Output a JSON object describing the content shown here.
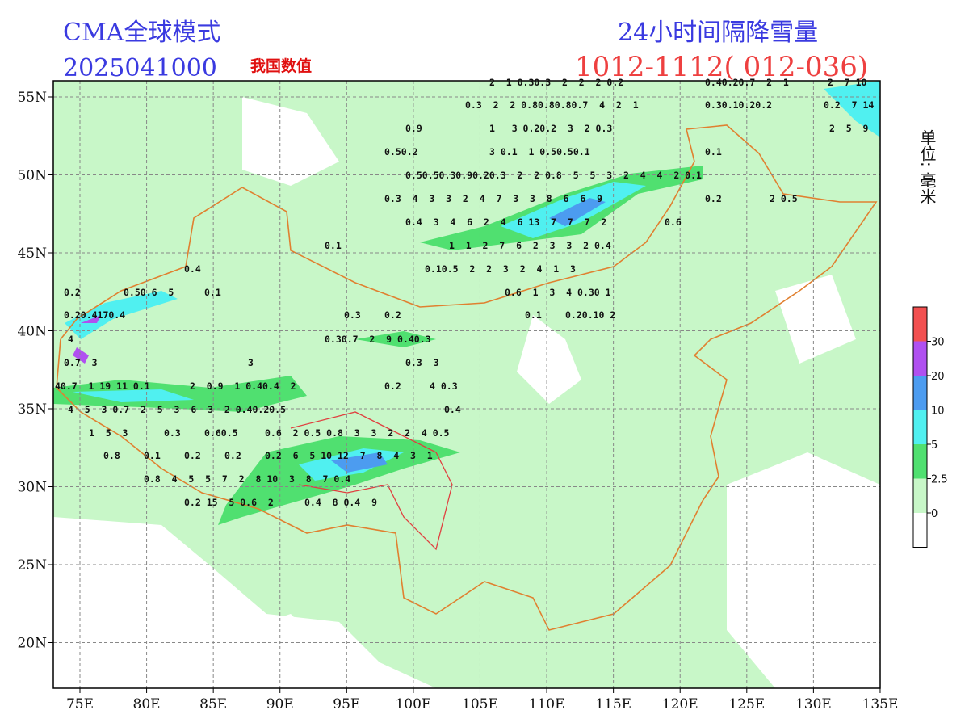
{
  "header": {
    "model": "CMA全球模式",
    "run": "2025041000",
    "badge": "我国数值",
    "product": "24小时间隔降雪量",
    "period": "1012-1112( 012-036)"
  },
  "unit_label": "单位: 毫米",
  "map": {
    "lat_labels": [
      "55N",
      "50N",
      "45N",
      "40N",
      "35N",
      "30N",
      "25N",
      "20N"
    ],
    "lon_labels": [
      "75E",
      "80E",
      "85E",
      "90E",
      "95E",
      "100E",
      "105E",
      "110E",
      "115E",
      "120E",
      "125E",
      "130E",
      "135E"
    ]
  },
  "legend": {
    "labels": [
      "30",
      "20",
      "10",
      "5",
      "2.5",
      "0"
    ],
    "colors": [
      "#f25050",
      "#b050f0",
      "#4c9cf0",
      "#50f0f0",
      "#50e070",
      "#c8f7c8",
      "#ffffff"
    ]
  },
  "station_values": [
    [
      "2  1 0.30.3  2  2  2 0.2",
      "0.40.20.7  2  1",
      "2  7 10"
    ],
    [
      "0.3  2  2 0.80.80.80.7  4  2  1",
      "0.30.10.20.2",
      "0.2  7 14"
    ],
    [
      "0.9",
      "1   3 0.20.2  3  2 0.3",
      "2  5  9"
    ],
    [
      "0.50.2",
      "3 0.1  1 0.50.50.1",
      "0.1"
    ],
    [
      "0.50.50.30.90.20.3  2  2 0.8  5  5  3  2  4  4  2 0.1"
    ],
    [
      "0.3  4  3  3  2  4  7  3  3  8  6  6  9",
      "0.2",
      "2 0.5"
    ],
    [
      "0.4  3  4  6  2  4  6 13  7  7  7  2",
      "0.6"
    ],
    [
      "0.1",
      "1  1  2  7  6  2  3  3  2 0.4"
    ],
    [
      "0.4",
      "0.10.5  2  2  3  2  4  1  3"
    ],
    [
      "0.2",
      "0.50.6  5",
      "0.1",
      "0.6  1  3  4 0.30 1"
    ],
    [
      "0.20.4170.4",
      "0.3",
      "0.2",
      "0.1",
      "0.20.10 2"
    ],
    [
      "4",
      "0.30.7  2  9 0.40.3"
    ],
    [
      "0.7  3",
      "3",
      "0.3  3"
    ],
    [
      "40.7  1 19 11 0.1",
      "2  0.9  1 0.40.4  2",
      "0.2",
      "4 0.3"
    ],
    [
      "4  5  3 0.7  2  5  3  6  3  2 0.40.20.5",
      "0.4"
    ],
    [
      "1  5  3",
      "0.3",
      "0.60.5",
      "0.6  2 0.5 0.8  3  3  2  2  4 0.5"
    ],
    [
      "0.8",
      "0.1",
      "0.2",
      "0.2",
      "0.2  6  5 10 12  7  8  4  3  1"
    ],
    [
      "0.8  4  5  5  7  2  8 10  3  8  7 0.4"
    ],
    [
      "0.2 15  5 0.6  2",
      "0.4  8 0.4  9"
    ]
  ]
}
